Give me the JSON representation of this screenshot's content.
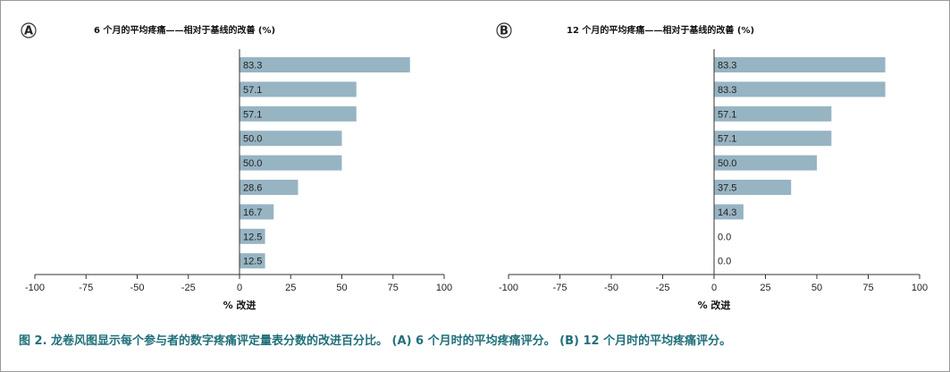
{
  "caption": "图 2. 龙卷风图显示每个参与者的数字疼痛评定量表分数的改进百分比。 (A) 6 个月时的平均疼痛评分。 (B) 12 个月时的平均疼痛评分。",
  "colors": {
    "bar": "#97b4c3",
    "axis": "#333333",
    "caption": "#1f6f7a"
  },
  "chart_data": [
    {
      "type": "bar",
      "orientation": "horizontal",
      "panel_label": "A",
      "title": "6 个月的平均疼痛——相对于基线的改善 (%)",
      "xlabel": "% 改进",
      "xlim": [
        -100,
        100
      ],
      "xticks": [
        -100,
        -75,
        -50,
        -25,
        0,
        25,
        50,
        75,
        100
      ],
      "values": [
        83.3,
        57.1,
        57.1,
        50.0,
        50.0,
        28.6,
        16.7,
        12.5,
        12.5
      ],
      "labels": [
        "83.3",
        "57.1",
        "57.1",
        "50.0",
        "50.0",
        "28.6",
        "16.7",
        "12.5",
        "12.5"
      ]
    },
    {
      "type": "bar",
      "orientation": "horizontal",
      "panel_label": "B",
      "title": "12 个月的平均疼痛——相对于基线的改善 (%)",
      "xlabel": "% 改进",
      "xlim": [
        -100,
        100
      ],
      "xticks": [
        -100,
        -75,
        -50,
        -25,
        0,
        25,
        50,
        75,
        100
      ],
      "values": [
        83.3,
        83.3,
        57.1,
        57.1,
        50.0,
        37.5,
        14.3,
        0.0,
        0.0
      ],
      "labels": [
        "83.3",
        "83.3",
        "57.1",
        "57.1",
        "50.0",
        "37.5",
        "14.3",
        "0.0",
        "0.0"
      ]
    }
  ]
}
